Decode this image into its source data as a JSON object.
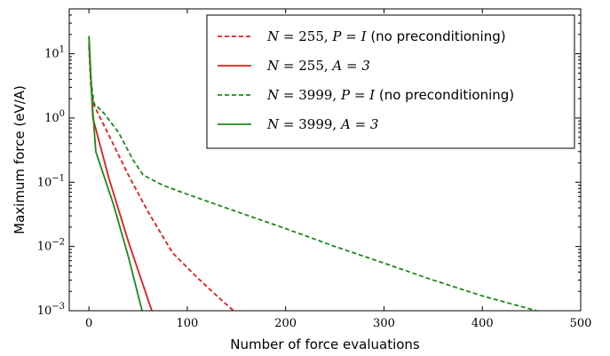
{
  "chart_data": {
    "type": "line",
    "xlabel": "Number of force evaluations",
    "ylabel": "Maximum force (eV/A)",
    "xlim": [
      -20,
      500
    ],
    "ylim": [
      0.001,
      50
    ],
    "yscale": "log",
    "grid": false,
    "legend_position": "top-right",
    "xticks": [
      0,
      100,
      200,
      300,
      400,
      500
    ],
    "yticks": [
      {
        "value": 0.001,
        "base": "10",
        "exp": "−3"
      },
      {
        "value": 0.01,
        "base": "10",
        "exp": "−2"
      },
      {
        "value": 0.1,
        "base": "10",
        "exp": "−1"
      },
      {
        "value": 1,
        "base": "10",
        "exp": "0"
      },
      {
        "value": 10,
        "base": "10",
        "exp": "1"
      }
    ],
    "series": [
      {
        "name": "N = 255, P = I (no preconditioning)",
        "color": "#e41a1c",
        "dashed": true,
        "x": [
          0,
          2,
          5,
          20,
          40,
          60,
          85,
          110,
          130,
          147
        ],
        "y": [
          13,
          3,
          1.6,
          0.55,
          0.13,
          0.035,
          0.008,
          0.0033,
          0.0017,
          0.001
        ]
      },
      {
        "name": "N = 255, A = 3",
        "color": "#e41a1c",
        "dashed": false,
        "x": [
          0,
          4,
          20,
          40,
          64
        ],
        "y": [
          15,
          1.0,
          0.12,
          0.012,
          0.001
        ]
      },
      {
        "name": "N = 3999, P = I (no preconditioning)",
        "color": "#1a8a1a",
        "dashed": true,
        "x": [
          0,
          2,
          5,
          15,
          30,
          45,
          55,
          75,
          100,
          150,
          200,
          250,
          300,
          350,
          400,
          455
        ],
        "y": [
          18,
          4,
          1.7,
          1.2,
          0.6,
          0.22,
          0.13,
          0.09,
          0.065,
          0.035,
          0.019,
          0.01,
          0.0055,
          0.003,
          0.0017,
          0.001
        ]
      },
      {
        "name": "N = 3999, A = 3",
        "color": "#1a8a1a",
        "dashed": false,
        "x": [
          0,
          3,
          7,
          25,
          40,
          54
        ],
        "y": [
          19,
          2.0,
          0.3,
          0.045,
          0.007,
          0.001
        ]
      }
    ],
    "legend": [
      {
        "n": "255",
        "rest_math": "P = I",
        "suffix": " (no preconditioning)"
      },
      {
        "n": "255",
        "rest_math": "A = 3",
        "suffix": ""
      },
      {
        "n": "3999",
        "rest_math": "P = I",
        "suffix": " (no preconditioning)"
      },
      {
        "n": "3999",
        "rest_math": "A = 3",
        "suffix": ""
      }
    ]
  }
}
